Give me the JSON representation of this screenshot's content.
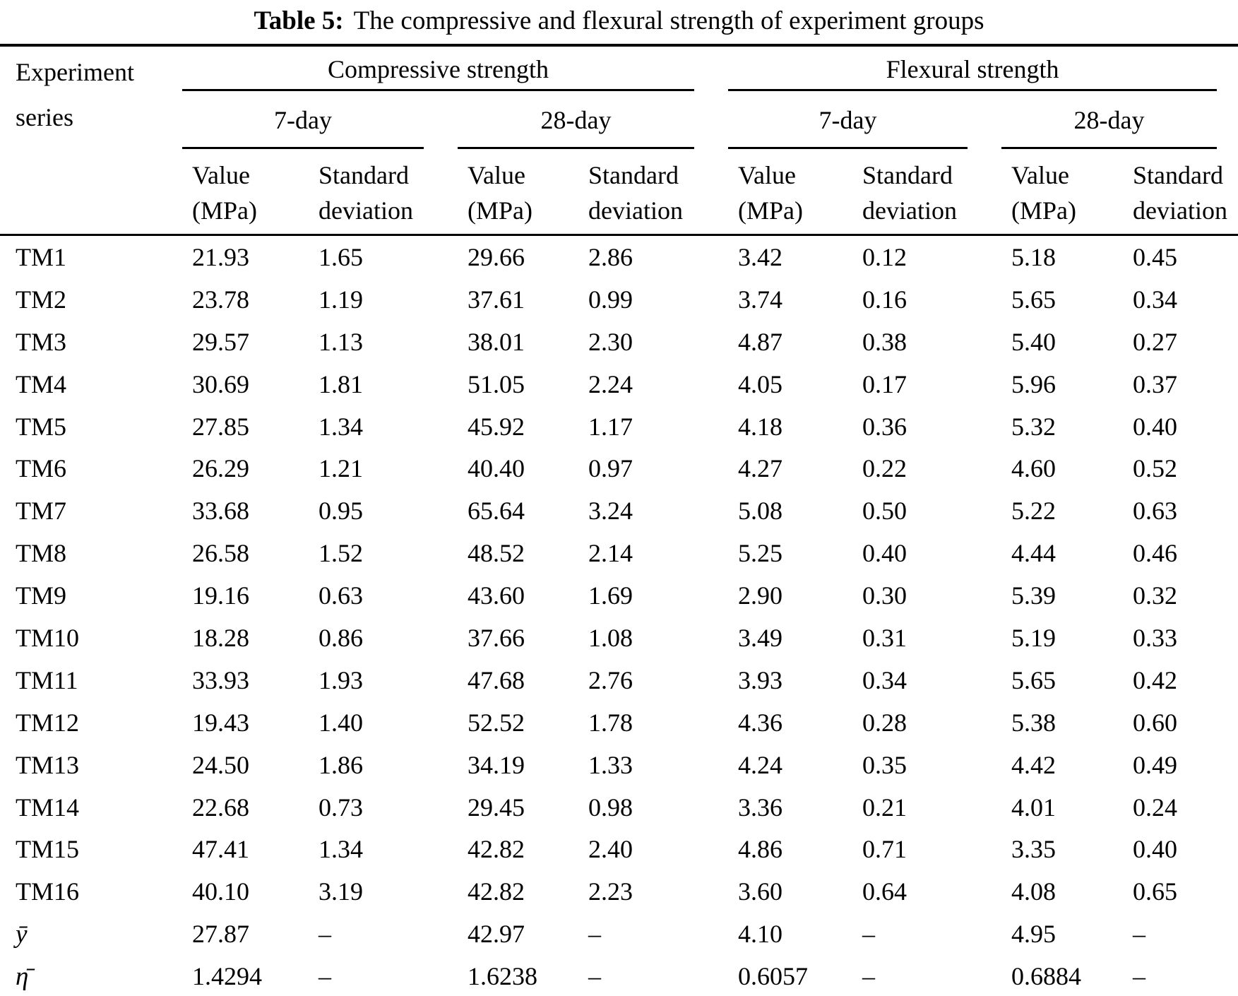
{
  "caption": {
    "label": "Table 5:",
    "text": "The compressive and flexural strength of experiment groups"
  },
  "table": {
    "corner_header": {
      "line1": "Experiment",
      "line2": "series"
    },
    "groups": [
      {
        "label": "Compressive strength",
        "subgroups": [
          {
            "label": "7-day"
          },
          {
            "label": "28-day"
          }
        ]
      },
      {
        "label": "Flexural strength",
        "subgroups": [
          {
            "label": "7-day"
          },
          {
            "label": "28-day"
          }
        ]
      }
    ],
    "leaf_headers": {
      "value_line1": "Value",
      "value_line2": "(MPa)",
      "sd_line1": "Standard",
      "sd_line2": "deviation"
    },
    "rows": [
      {
        "label": "TM1",
        "summary": false,
        "values": [
          "21.93",
          "1.65",
          "29.66",
          "2.86",
          "3.42",
          "0.12",
          "5.18",
          "0.45"
        ]
      },
      {
        "label": "TM2",
        "summary": false,
        "values": [
          "23.78",
          "1.19",
          "37.61",
          "0.99",
          "3.74",
          "0.16",
          "5.65",
          "0.34"
        ]
      },
      {
        "label": "TM3",
        "summary": false,
        "values": [
          "29.57",
          "1.13",
          "38.01",
          "2.30",
          "4.87",
          "0.38",
          "5.40",
          "0.27"
        ]
      },
      {
        "label": "TM4",
        "summary": false,
        "values": [
          "30.69",
          "1.81",
          "51.05",
          "2.24",
          "4.05",
          "0.17",
          "5.96",
          "0.37"
        ]
      },
      {
        "label": "TM5",
        "summary": false,
        "values": [
          "27.85",
          "1.34",
          "45.92",
          "1.17",
          "4.18",
          "0.36",
          "5.32",
          "0.40"
        ]
      },
      {
        "label": "TM6",
        "summary": false,
        "values": [
          "26.29",
          "1.21",
          "40.40",
          "0.97",
          "4.27",
          "0.22",
          "4.60",
          "0.52"
        ]
      },
      {
        "label": "TM7",
        "summary": false,
        "values": [
          "33.68",
          "0.95",
          "65.64",
          "3.24",
          "5.08",
          "0.50",
          "5.22",
          "0.63"
        ]
      },
      {
        "label": "TM8",
        "summary": false,
        "values": [
          "26.58",
          "1.52",
          "48.52",
          "2.14",
          "5.25",
          "0.40",
          "4.44",
          "0.46"
        ]
      },
      {
        "label": "TM9",
        "summary": false,
        "values": [
          "19.16",
          "0.63",
          "43.60",
          "1.69",
          "2.90",
          "0.30",
          "5.39",
          "0.32"
        ]
      },
      {
        "label": "TM10",
        "summary": false,
        "values": [
          "18.28",
          "0.86",
          "37.66",
          "1.08",
          "3.49",
          "0.31",
          "5.19",
          "0.33"
        ]
      },
      {
        "label": "TM11",
        "summary": false,
        "values": [
          "33.93",
          "1.93",
          "47.68",
          "2.76",
          "3.93",
          "0.34",
          "5.65",
          "0.42"
        ]
      },
      {
        "label": "TM12",
        "summary": false,
        "values": [
          "19.43",
          "1.40",
          "52.52",
          "1.78",
          "4.36",
          "0.28",
          "5.38",
          "0.60"
        ]
      },
      {
        "label": "TM13",
        "summary": false,
        "values": [
          "24.50",
          "1.86",
          "34.19",
          "1.33",
          "4.24",
          "0.35",
          "4.42",
          "0.49"
        ]
      },
      {
        "label": "TM14",
        "summary": false,
        "values": [
          "22.68",
          "0.73",
          "29.45",
          "0.98",
          "3.36",
          "0.21",
          "4.01",
          "0.24"
        ]
      },
      {
        "label": "TM15",
        "summary": false,
        "values": [
          "47.41",
          "1.34",
          "42.82",
          "2.40",
          "4.86",
          "0.71",
          "3.35",
          "0.40"
        ]
      },
      {
        "label": "TM16",
        "summary": false,
        "values": [
          "40.10",
          "3.19",
          "42.82",
          "2.23",
          "3.60",
          "0.64",
          "4.08",
          "0.65"
        ]
      },
      {
        "label": "ȳ",
        "summary": true,
        "values": [
          "27.87",
          "–",
          "42.97",
          "–",
          "4.10",
          "–",
          "4.95",
          "–"
        ]
      },
      {
        "label": "η̄",
        "summary": true,
        "values": [
          "1.4294",
          "–",
          "1.6238",
          "–",
          "0.6057",
          "–",
          "0.6884",
          "–"
        ]
      }
    ]
  }
}
